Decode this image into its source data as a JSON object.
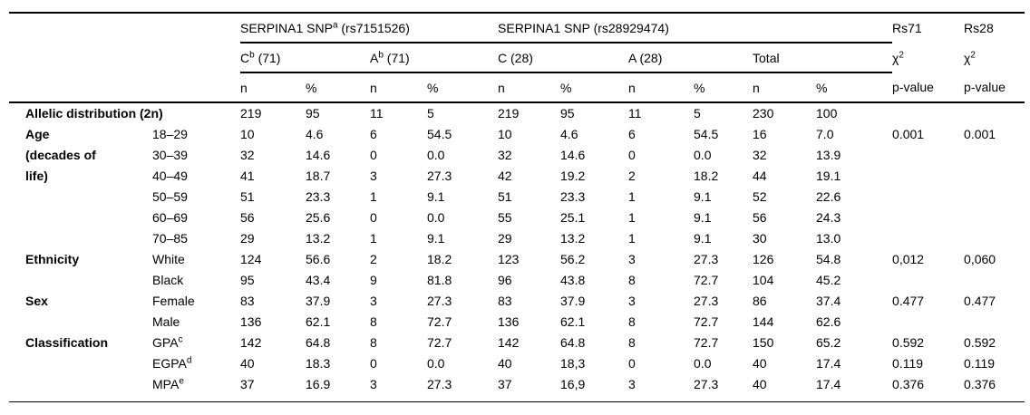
{
  "colors": {
    "background": "#ffffff",
    "text": "#000000",
    "rule": "#000000"
  },
  "table": {
    "header": {
      "snp1": {
        "name": "SERPINA1 SNP",
        "sup": "a",
        "rest": " (rs7151526)"
      },
      "snp2": "SERPINA1 SNP (rs28929474)",
      "rs71": "Rs71",
      "rs28": "Rs28",
      "c71": {
        "name": "C",
        "sup": "b",
        "rest": " (71)"
      },
      "a71": {
        "name": "A",
        "sup": "b",
        "rest": " (71)"
      },
      "c28": "C (28)",
      "a28": "A (28)",
      "total": "Total",
      "chi": {
        "name": "χ",
        "sup": "2"
      },
      "n": "n",
      "pct": "%",
      "pvalue": "p-value"
    },
    "rows": [
      {
        "cat": "Allelic distribution (2n)",
        "span": 2,
        "vals": [
          "219",
          "95",
          "11",
          "5",
          "219",
          "95",
          "11",
          "5",
          "230",
          "100",
          "",
          ""
        ]
      },
      {
        "cat": "Age",
        "sub": "18–29",
        "vals": [
          "10",
          "4.6",
          "6",
          "54.5",
          "10",
          "4.6",
          "6",
          "54.5",
          "16",
          "7.0",
          "0.001",
          "0.001"
        ]
      },
      {
        "cat": "(decades of",
        "sub": "30–39",
        "vals": [
          "32",
          "14.6",
          "0",
          "0.0",
          "32",
          "14.6",
          "0",
          "0.0",
          "32",
          "13.9",
          "",
          ""
        ]
      },
      {
        "cat": "life)",
        "sub": "40–49",
        "vals": [
          "41",
          "18.7",
          "3",
          "27.3",
          "42",
          "19.2",
          "2",
          "18.2",
          "44",
          "19.1",
          "",
          ""
        ]
      },
      {
        "cat": "",
        "sub": "50–59",
        "vals": [
          "51",
          "23.3",
          "1",
          "9.1",
          "51",
          "23.3",
          "1",
          "9.1",
          "52",
          "22.6",
          "",
          ""
        ]
      },
      {
        "cat": "",
        "sub": "60–69",
        "vals": [
          "56",
          "25.6",
          "0",
          "0.0",
          "55",
          "25.1",
          "1",
          "9.1",
          "56",
          "24.3",
          "",
          ""
        ]
      },
      {
        "cat": "",
        "sub": "70–85",
        "vals": [
          "29",
          "13.2",
          "1",
          "9.1",
          "29",
          "13.2",
          "1",
          "9.1",
          "30",
          "13.0",
          "",
          ""
        ]
      },
      {
        "cat": "Ethnicity",
        "sub": "White",
        "vals": [
          "124",
          "56.6",
          "2",
          "18.2",
          "123",
          "56.2",
          "3",
          "27.3",
          "126",
          "54.8",
          "0,012",
          "0,060"
        ]
      },
      {
        "cat": "",
        "sub": "Black",
        "vals": [
          "95",
          "43.4",
          "9",
          "81.8",
          "96",
          "43.8",
          "8",
          "72.7",
          "104",
          "45.2",
          "",
          ""
        ]
      },
      {
        "cat": "Sex",
        "sub": "Female",
        "vals": [
          "83",
          "37.9",
          "3",
          "27.3",
          "83",
          "37.9",
          "3",
          "27.3",
          "86",
          "37.4",
          "0.477",
          "0.477"
        ]
      },
      {
        "cat": "",
        "sub": "Male",
        "vals": [
          "136",
          "62.1",
          "8",
          "72.7",
          "136",
          "62.1",
          "8",
          "72.7",
          "144",
          "62.6",
          "",
          ""
        ]
      },
      {
        "cat": "Classification",
        "sub": "GPA",
        "sub_sup": "c",
        "vals": [
          "142",
          "64.8",
          "8",
          "72.7",
          "142",
          "64.8",
          "8",
          "72.7",
          "150",
          "65.2",
          "0.592",
          "0.592"
        ]
      },
      {
        "cat": "",
        "sub": "EGPA",
        "sub_sup": "d",
        "vals": [
          "40",
          "18.3",
          "0",
          "0.0",
          "40",
          "18,3",
          "0",
          "0.0",
          "40",
          "17.4",
          "0.119",
          "0.119"
        ]
      },
      {
        "cat": "",
        "sub": "MPA",
        "sub_sup": "e",
        "vals": [
          "37",
          "16.9",
          "3",
          "27.3",
          "37",
          "16,9",
          "3",
          "27.3",
          "40",
          "17.4",
          "0.376",
          "0.376"
        ]
      }
    ]
  }
}
